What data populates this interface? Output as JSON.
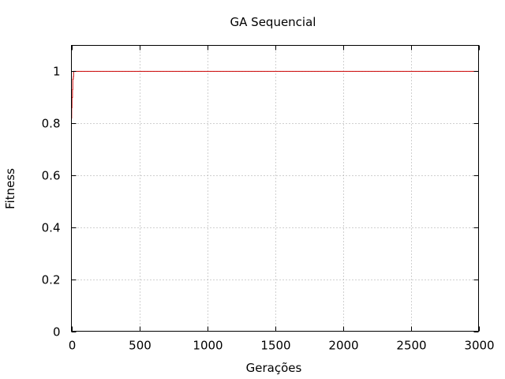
{
  "chart_data": {
    "type": "line",
    "title": "GA Sequencial",
    "xlabel": "Gerações",
    "ylabel": "Fitness",
    "xlim": [
      0,
      3000
    ],
    "ylim": [
      0,
      1.1
    ],
    "x_ticks": [
      0,
      500,
      1000,
      1500,
      2000,
      2500,
      3000
    ],
    "y_ticks": [
      0,
      0.2,
      0.4,
      0.6,
      0.8,
      1
    ],
    "x_tick_labels": [
      "0",
      "500",
      "1000",
      "1500",
      "2000",
      "2500",
      "3000"
    ],
    "y_tick_labels": [
      "0",
      "0.2",
      "0.4",
      "0.6",
      "0.8",
      "1"
    ],
    "grid": true,
    "legend": "none",
    "series": [
      {
        "color": "#cc0000",
        "x": [
          0,
          2,
          4,
          6,
          8,
          10,
          12,
          14,
          16,
          18,
          20,
          3000
        ],
        "y": [
          0.82,
          0.86,
          0.9,
          0.9,
          0.93,
          0.97,
          0.97,
          0.98,
          1.0,
          1.0,
          1.0,
          1.0
        ]
      }
    ]
  }
}
